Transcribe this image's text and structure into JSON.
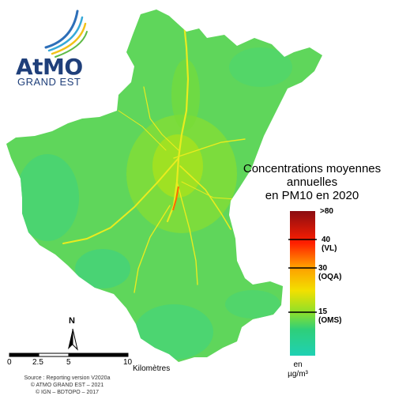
{
  "logo": {
    "wordmark": "AtMO",
    "subtitle": "GRAND EST"
  },
  "title": {
    "line1": "Concentrations moyennes",
    "line2": "annuelles",
    "line3": "en PM10 en 2020"
  },
  "legend": {
    "max_label": ">80",
    "thresholds": [
      {
        "value": "40",
        "tag": "(VL)"
      },
      {
        "value": "30",
        "tag": "(OQA)"
      },
      {
        "value": "15",
        "tag": "(OMS)"
      }
    ],
    "unit_line1": "en",
    "unit_line2": "µg/m³",
    "colors": [
      "#8b0d12",
      "#ff2a00",
      "#ff9a00",
      "#f2e000",
      "#8ee02a",
      "#2ecf7a",
      "#1fd1b4"
    ]
  },
  "scale_bar": {
    "ticks": [
      "0",
      "2.5",
      "5",
      "10"
    ],
    "unit": "Kilomètres"
  },
  "north_arrow": {
    "label": "N"
  },
  "credits": {
    "line1": "Source : Reporting version V2020a",
    "line2": "© ATMO GRAND EST – 2021",
    "line3": "© IGN – BDTOPO – 2017"
  },
  "map_colors": {
    "background": "#5fd65b",
    "urban": "#a6e21f",
    "rural_cool": "#3fd27e",
    "roads": "#f0ec1a"
  }
}
